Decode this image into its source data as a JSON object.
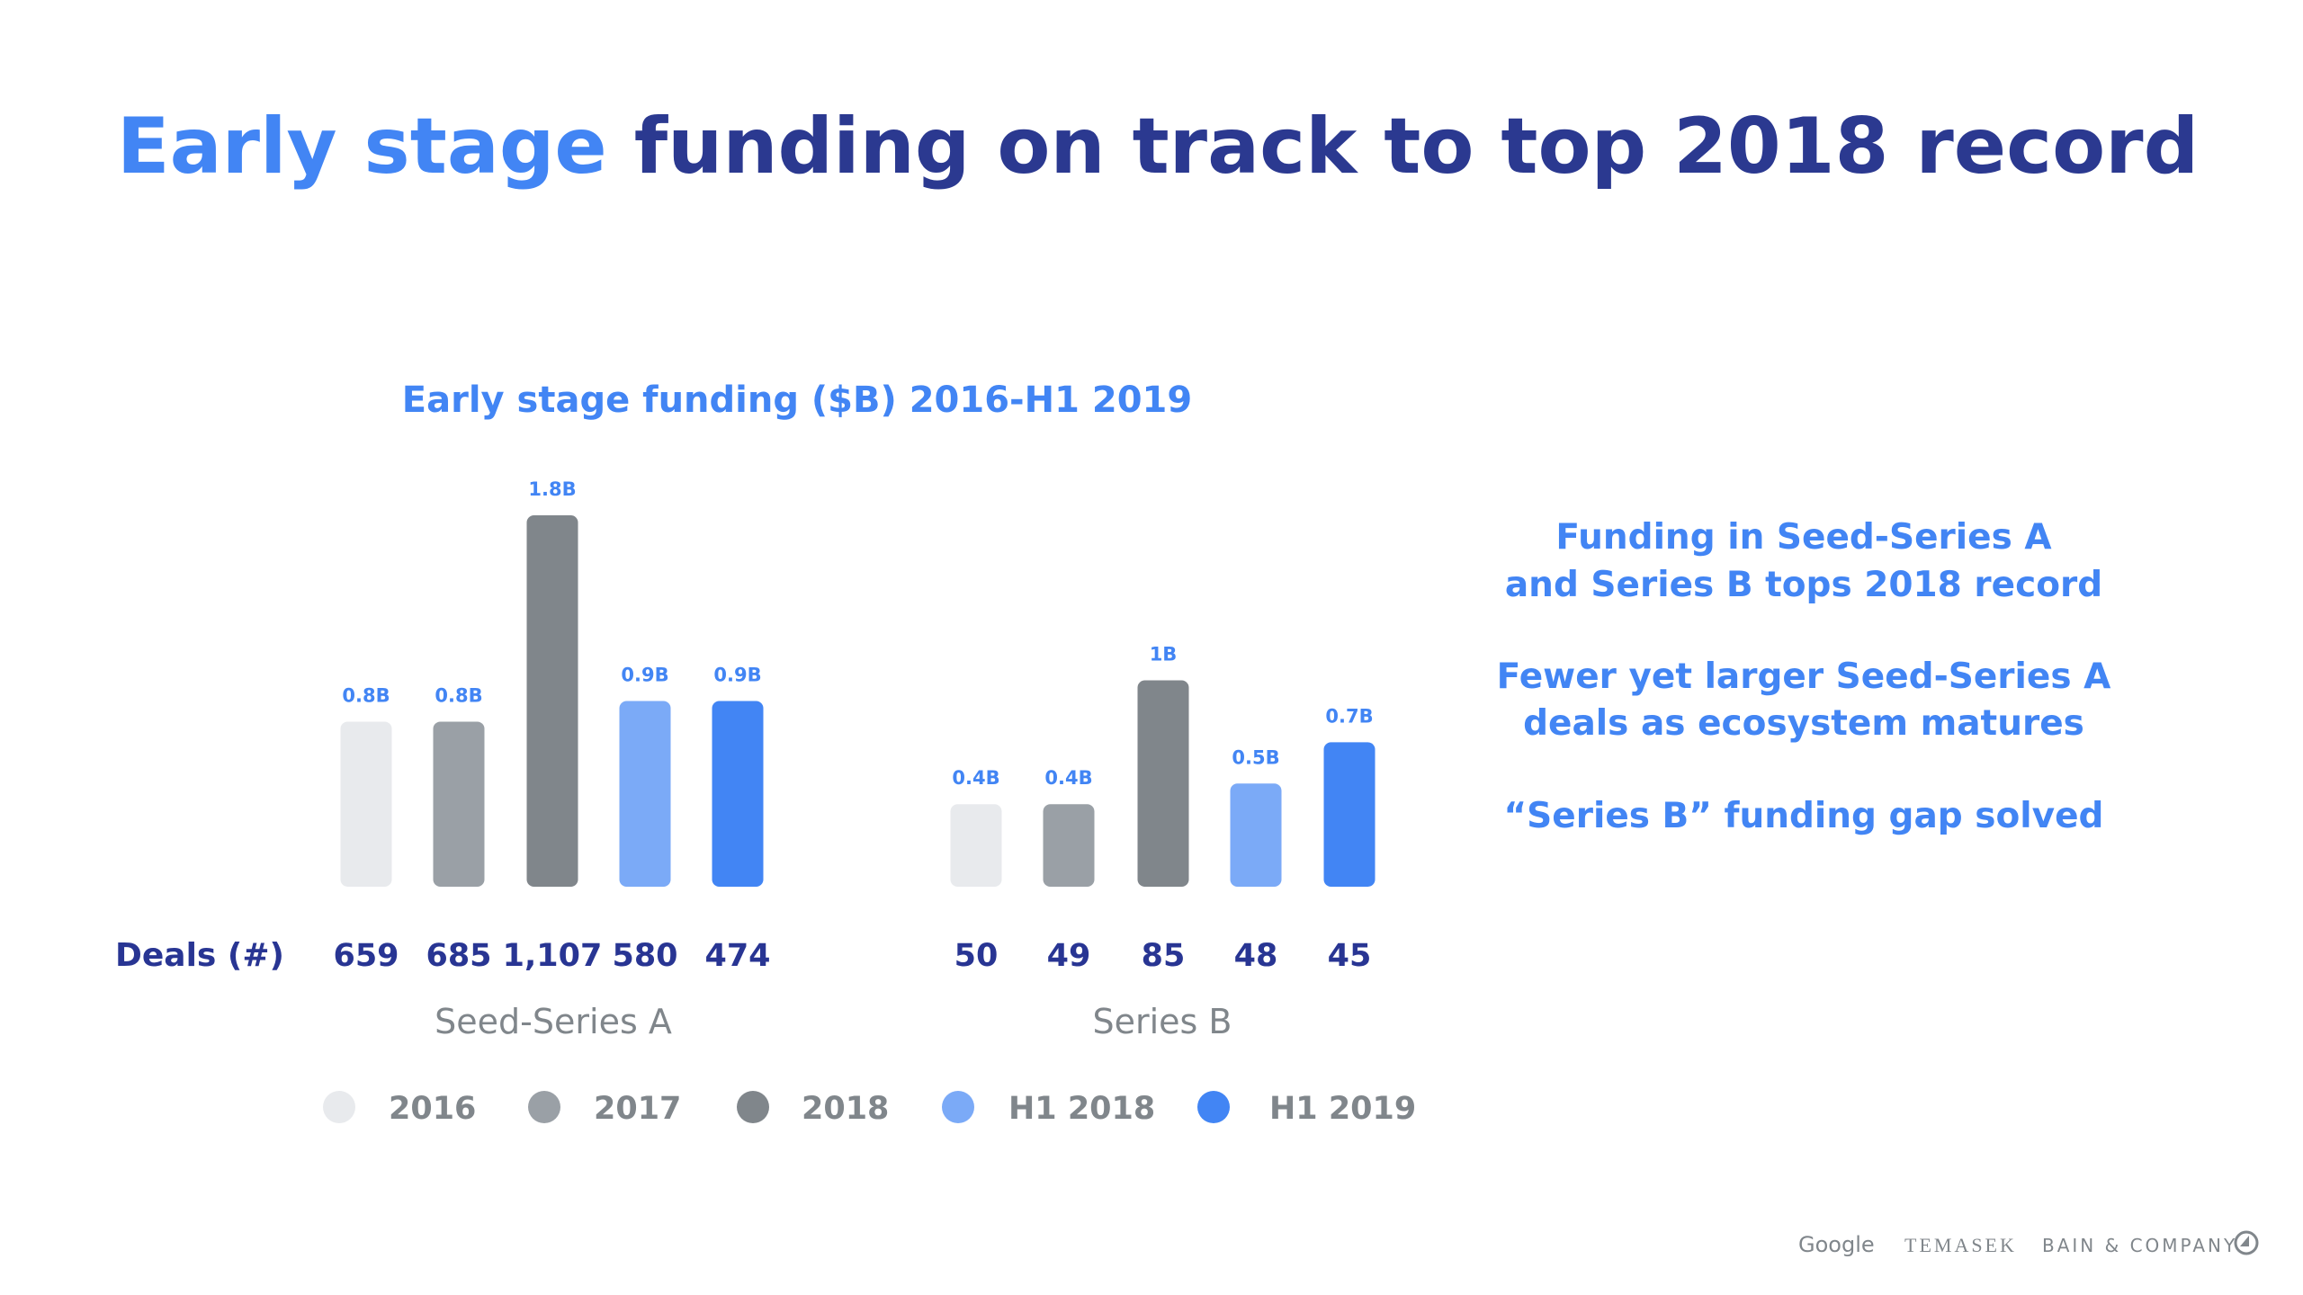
{
  "title": {
    "highlight": "Early stage",
    "rest": " funding on track to top 2018 record"
  },
  "colors": {
    "navy": "#283593",
    "blue": "#4285f4",
    "gray_text": "#80868b"
  },
  "chart_data": {
    "type": "bar",
    "title": "Early stage funding ($B) 2016-H1 2019",
    "unit": "$B",
    "legend": [
      "2016",
      "2017",
      "2018",
      "H1 2018",
      "H1 2019"
    ],
    "legend_position": "bottom",
    "series_colors": [
      "#e8eaed",
      "#9aa0a6",
      "#80868b",
      "#7baaf7",
      "#4285f4"
    ],
    "deals_label": "Deals (#)",
    "groups": [
      {
        "name": "Seed-Series A",
        "values": [
          0.8,
          0.8,
          1.8,
          0.9,
          0.9
        ],
        "labels": [
          "0.8B",
          "0.8B",
          "1.8B",
          "0.9B",
          "0.9B"
        ],
        "deals": [
          "659",
          "685",
          "1,107",
          "580",
          "474"
        ]
      },
      {
        "name": "Series B",
        "values": [
          0.4,
          0.4,
          1.0,
          0.5,
          0.7
        ],
        "labels": [
          "0.4B",
          "0.4B",
          "1B",
          "0.5B",
          "0.7B"
        ],
        "deals": [
          "50",
          "49",
          "85",
          "48",
          "45"
        ]
      }
    ],
    "ylim": [
      0,
      1.8
    ],
    "grid": false
  },
  "insights": [
    [
      "Funding in Seed-Series A",
      "and Series B tops 2018 record"
    ],
    [
      "Fewer yet larger Seed-Series A",
      "deals as ecosystem matures"
    ],
    [
      "“Series B” funding gap solved"
    ]
  ],
  "footer": {
    "google": "Google",
    "temasek": "TEMASEK",
    "bain": "BAIN & COMPANY"
  }
}
